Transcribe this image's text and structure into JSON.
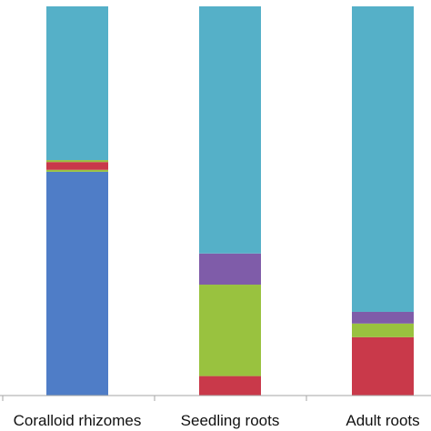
{
  "chart_data": {
    "type": "bar",
    "stacked": "percent",
    "title": "",
    "xlabel": "",
    "ylabel": "",
    "ylim": [
      0,
      100
    ],
    "grid": false,
    "categories": [
      "Coralloid rhizomes",
      "Seedling roots",
      "Adult roots"
    ],
    "series": [
      {
        "color": "#c9394a",
        "values": [
          0,
          5,
          15
        ]
      },
      {
        "color": "#4f7dc7",
        "values": [
          57.5,
          0,
          0
        ]
      },
      {
        "color": "#99c23f",
        "values": [
          0.5,
          23.5,
          3.5
        ]
      },
      {
        "color": "#7f5ca9",
        "values": [
          0,
          8,
          3
        ]
      },
      {
        "color": "#c9394a",
        "values": [
          2,
          0,
          0
        ]
      },
      {
        "color": "#99c23f",
        "values": [
          0.5,
          0,
          0
        ]
      },
      {
        "color": "#55b0c8",
        "values": [
          39.5,
          63.5,
          78.5
        ]
      }
    ]
  }
}
